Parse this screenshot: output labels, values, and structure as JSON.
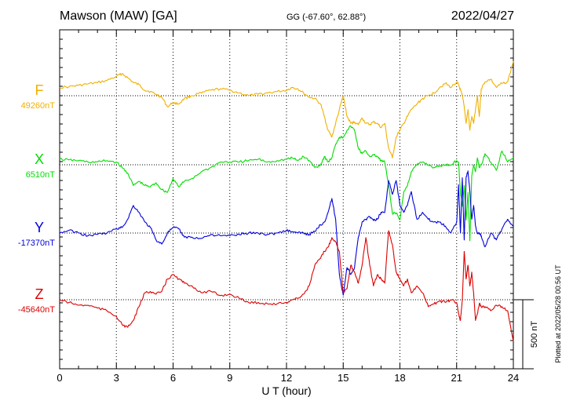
{
  "header": {
    "station": "Mawson (MAW)  [GA]",
    "coords": "GG (-67.60°,  62.88°)",
    "date": "2022/04/27"
  },
  "footnote": "Plotted at 2022/05/28 00:56 UT",
  "chart_data": {
    "type": "line",
    "title": "Mawson (MAW)  [GA]",
    "xlabel": "U T (hour)",
    "ylabel": "",
    "xlim": [
      0,
      24
    ],
    "xticks": [
      "0",
      "3",
      "6",
      "9",
      "12",
      "15",
      "18",
      "21",
      "24"
    ],
    "grid": "vertical dotted at every 3 h; dotted baseline per series",
    "scale_bar": {
      "label": "500 nT",
      "value_nT": 500
    },
    "series": [
      {
        "name": "F",
        "baseline_label": "49260nT",
        "baseline_nT": 49260,
        "color": "#f0b000",
        "t": [
          0,
          0.5,
          1,
          1.5,
          2,
          2.5,
          3,
          3.3,
          3.6,
          3.9,
          4.2,
          4.5,
          4.8,
          5.1,
          5.4,
          5.7,
          6,
          6.3,
          6.6,
          7,
          7.5,
          8,
          8.5,
          9,
          9.5,
          10,
          10.5,
          11,
          11.5,
          12,
          12.3,
          12.6,
          12.9,
          13.2,
          13.5,
          13.8,
          14,
          14.2,
          14.4,
          14.6,
          14.8,
          15,
          15.2,
          15.4,
          15.6,
          15.8,
          16,
          16.2,
          16.4,
          16.6,
          16.8,
          17,
          17.2,
          17.4,
          17.6,
          17.8,
          18,
          18.2,
          18.4,
          18.6,
          18.9,
          19.2,
          19.5,
          19.8,
          20.1,
          20.4,
          20.7,
          21,
          21.1,
          21.2,
          21.3,
          21.4,
          21.5,
          21.6,
          21.7,
          21.8,
          21.9,
          22,
          22.1,
          22.2,
          22.3,
          22.5,
          22.8,
          23.1,
          23.4,
          23.7,
          24
        ],
        "v": [
          60,
          65,
          75,
          85,
          95,
          110,
          140,
          160,
          130,
          95,
          80,
          40,
          30,
          10,
          -10,
          -80,
          -50,
          -60,
          -20,
          0,
          20,
          40,
          50,
          40,
          20,
          0,
          10,
          20,
          30,
          40,
          60,
          50,
          20,
          -10,
          -20,
          -60,
          -150,
          -250,
          -300,
          -200,
          -100,
          0,
          -150,
          -200,
          -190,
          -210,
          -160,
          -200,
          -210,
          -190,
          -200,
          -230,
          -200,
          -380,
          -450,
          -300,
          -250,
          -200,
          -150,
          -100,
          -60,
          -20,
          0,
          20,
          60,
          90,
          60,
          100,
          80,
          40,
          0,
          -80,
          -200,
          -100,
          -250,
          -150,
          -200,
          -100,
          0,
          -150,
          50,
          100,
          120,
          60,
          90,
          100,
          250
        ]
      },
      {
        "name": "X",
        "baseline_label": "6510nT",
        "baseline_nT": 6510,
        "color": "#00dd00",
        "t": [
          0,
          0.5,
          1,
          1.5,
          2,
          2.5,
          3,
          3.3,
          3.6,
          3.9,
          4.2,
          4.5,
          4.8,
          5.1,
          5.4,
          5.7,
          6,
          6.3,
          6.6,
          7,
          7.5,
          8,
          8.5,
          9,
          9.5,
          10,
          10.5,
          11,
          11.5,
          12,
          12.3,
          12.6,
          12.9,
          13.2,
          13.5,
          13.8,
          14,
          14.2,
          14.4,
          14.6,
          14.8,
          15,
          15.2,
          15.4,
          15.6,
          15.8,
          16,
          16.2,
          16.4,
          16.6,
          16.8,
          17,
          17.2,
          17.4,
          17.6,
          17.8,
          18,
          18.2,
          18.4,
          18.6,
          18.9,
          19.2,
          19.5,
          19.8,
          20.1,
          20.4,
          20.7,
          21,
          21.1,
          21.2,
          21.3,
          21.4,
          21.5,
          21.6,
          21.7,
          21.8,
          21.9,
          22,
          22.1,
          22.2,
          22.3,
          22.5,
          22.8,
          23.1,
          23.4,
          23.7,
          24
        ],
        "v": [
          40,
          35,
          30,
          20,
          20,
          30,
          20,
          -20,
          -60,
          -150,
          -120,
          -150,
          -160,
          -130,
          -180,
          -200,
          -100,
          -160,
          -120,
          -100,
          -50,
          -20,
          20,
          20,
          20,
          30,
          40,
          20,
          30,
          40,
          50,
          30,
          60,
          30,
          -20,
          0,
          60,
          20,
          50,
          150,
          200,
          200,
          250,
          280,
          250,
          120,
          80,
          100,
          60,
          70,
          60,
          30,
          20,
          -150,
          -350,
          -350,
          -400,
          -200,
          -150,
          -50,
          0,
          20,
          0,
          -20,
          -10,
          0,
          0,
          30,
          20,
          -200,
          -300,
          -150,
          -400,
          -200,
          -550,
          -80,
          0,
          -50,
          50,
          -20,
          0,
          80,
          20,
          -40,
          100,
          20,
          50
        ]
      },
      {
        "name": "Y",
        "baseline_label": "-17370nT",
        "baseline_nT": -17370,
        "color": "#0000dd",
        "t": [
          0,
          0.5,
          1,
          1.5,
          2,
          2.5,
          3,
          3.3,
          3.6,
          3.9,
          4.2,
          4.5,
          4.8,
          5.1,
          5.4,
          5.7,
          6,
          6.3,
          6.6,
          7,
          7.5,
          8,
          8.5,
          9,
          9.5,
          10,
          10.5,
          11,
          11.5,
          12,
          12.3,
          12.6,
          12.9,
          13.2,
          13.5,
          13.8,
          14,
          14.2,
          14.4,
          14.6,
          14.8,
          15,
          15.2,
          15.4,
          15.6,
          15.8,
          16,
          16.2,
          16.4,
          16.6,
          16.8,
          17,
          17.2,
          17.4,
          17.6,
          17.8,
          18,
          18.2,
          18.4,
          18.6,
          18.9,
          19.2,
          19.5,
          19.8,
          20.1,
          20.4,
          20.7,
          21,
          21.1,
          21.2,
          21.3,
          21.4,
          21.5,
          21.6,
          21.7,
          21.8,
          21.9,
          22,
          22.1,
          22.2,
          22.3,
          22.5,
          22.8,
          23.1,
          23.4,
          23.7,
          24
        ],
        "v": [
          0,
          20,
          0,
          -20,
          -10,
          0,
          30,
          40,
          100,
          200,
          150,
          80,
          40,
          -50,
          -80,
          0,
          40,
          30,
          -30,
          -30,
          -40,
          -10,
          -20,
          -20,
          -10,
          0,
          0,
          -10,
          0,
          20,
          10,
          0,
          0,
          -10,
          10,
          60,
          80,
          150,
          250,
          100,
          -300,
          -450,
          -250,
          -300,
          -250,
          -30,
          80,
          100,
          120,
          90,
          100,
          150,
          150,
          380,
          280,
          380,
          200,
          150,
          200,
          300,
          100,
          150,
          100,
          80,
          80,
          50,
          0,
          80,
          350,
          0,
          400,
          -50,
          400,
          450,
          300,
          100,
          200,
          50,
          0,
          0,
          -20,
          -100,
          0,
          -50,
          30,
          100,
          50
        ]
      },
      {
        "name": "Z",
        "baseline_label": "-45640nT",
        "baseline_nT": -45640,
        "color": "#dd0000",
        "t": [
          0,
          0.5,
          1,
          1.5,
          2,
          2.5,
          3,
          3.3,
          3.6,
          3.9,
          4.2,
          4.5,
          4.8,
          5.1,
          5.4,
          5.7,
          6,
          6.3,
          6.6,
          7,
          7.5,
          8,
          8.5,
          9,
          9.5,
          10,
          10.5,
          11,
          11.5,
          12,
          12.3,
          12.6,
          12.9,
          13.2,
          13.5,
          13.8,
          14,
          14.2,
          14.4,
          14.6,
          14.8,
          15,
          15.2,
          15.4,
          15.6,
          15.8,
          16,
          16.2,
          16.4,
          16.6,
          16.8,
          17,
          17.2,
          17.4,
          17.6,
          17.8,
          18,
          18.2,
          18.4,
          18.6,
          18.9,
          19.2,
          19.5,
          19.8,
          20.1,
          20.4,
          20.7,
          21,
          21.1,
          21.2,
          21.3,
          21.4,
          21.5,
          21.6,
          21.7,
          21.8,
          21.9,
          22,
          22.1,
          22.2,
          22.3,
          22.5,
          22.8,
          23.1,
          23.4,
          23.7,
          24
        ],
        "v": [
          0,
          -20,
          -40,
          -40,
          -60,
          -80,
          -120,
          -180,
          -200,
          -150,
          -50,
          50,
          60,
          40,
          60,
          150,
          180,
          150,
          120,
          100,
          50,
          60,
          30,
          40,
          10,
          -20,
          -20,
          -30,
          -30,
          -20,
          0,
          10,
          40,
          100,
          250,
          300,
          350,
          380,
          450,
          420,
          350,
          50,
          80,
          250,
          200,
          120,
          250,
          450,
          250,
          100,
          180,
          150,
          120,
          500,
          400,
          200,
          150,
          100,
          150,
          50,
          100,
          50,
          -50,
          -30,
          -10,
          -20,
          0,
          -20,
          -100,
          -150,
          0,
          350,
          150,
          250,
          100,
          200,
          50,
          -150,
          -100,
          -30,
          -50,
          -50,
          -80,
          -40,
          -50,
          -80,
          -300
        ]
      }
    ]
  }
}
